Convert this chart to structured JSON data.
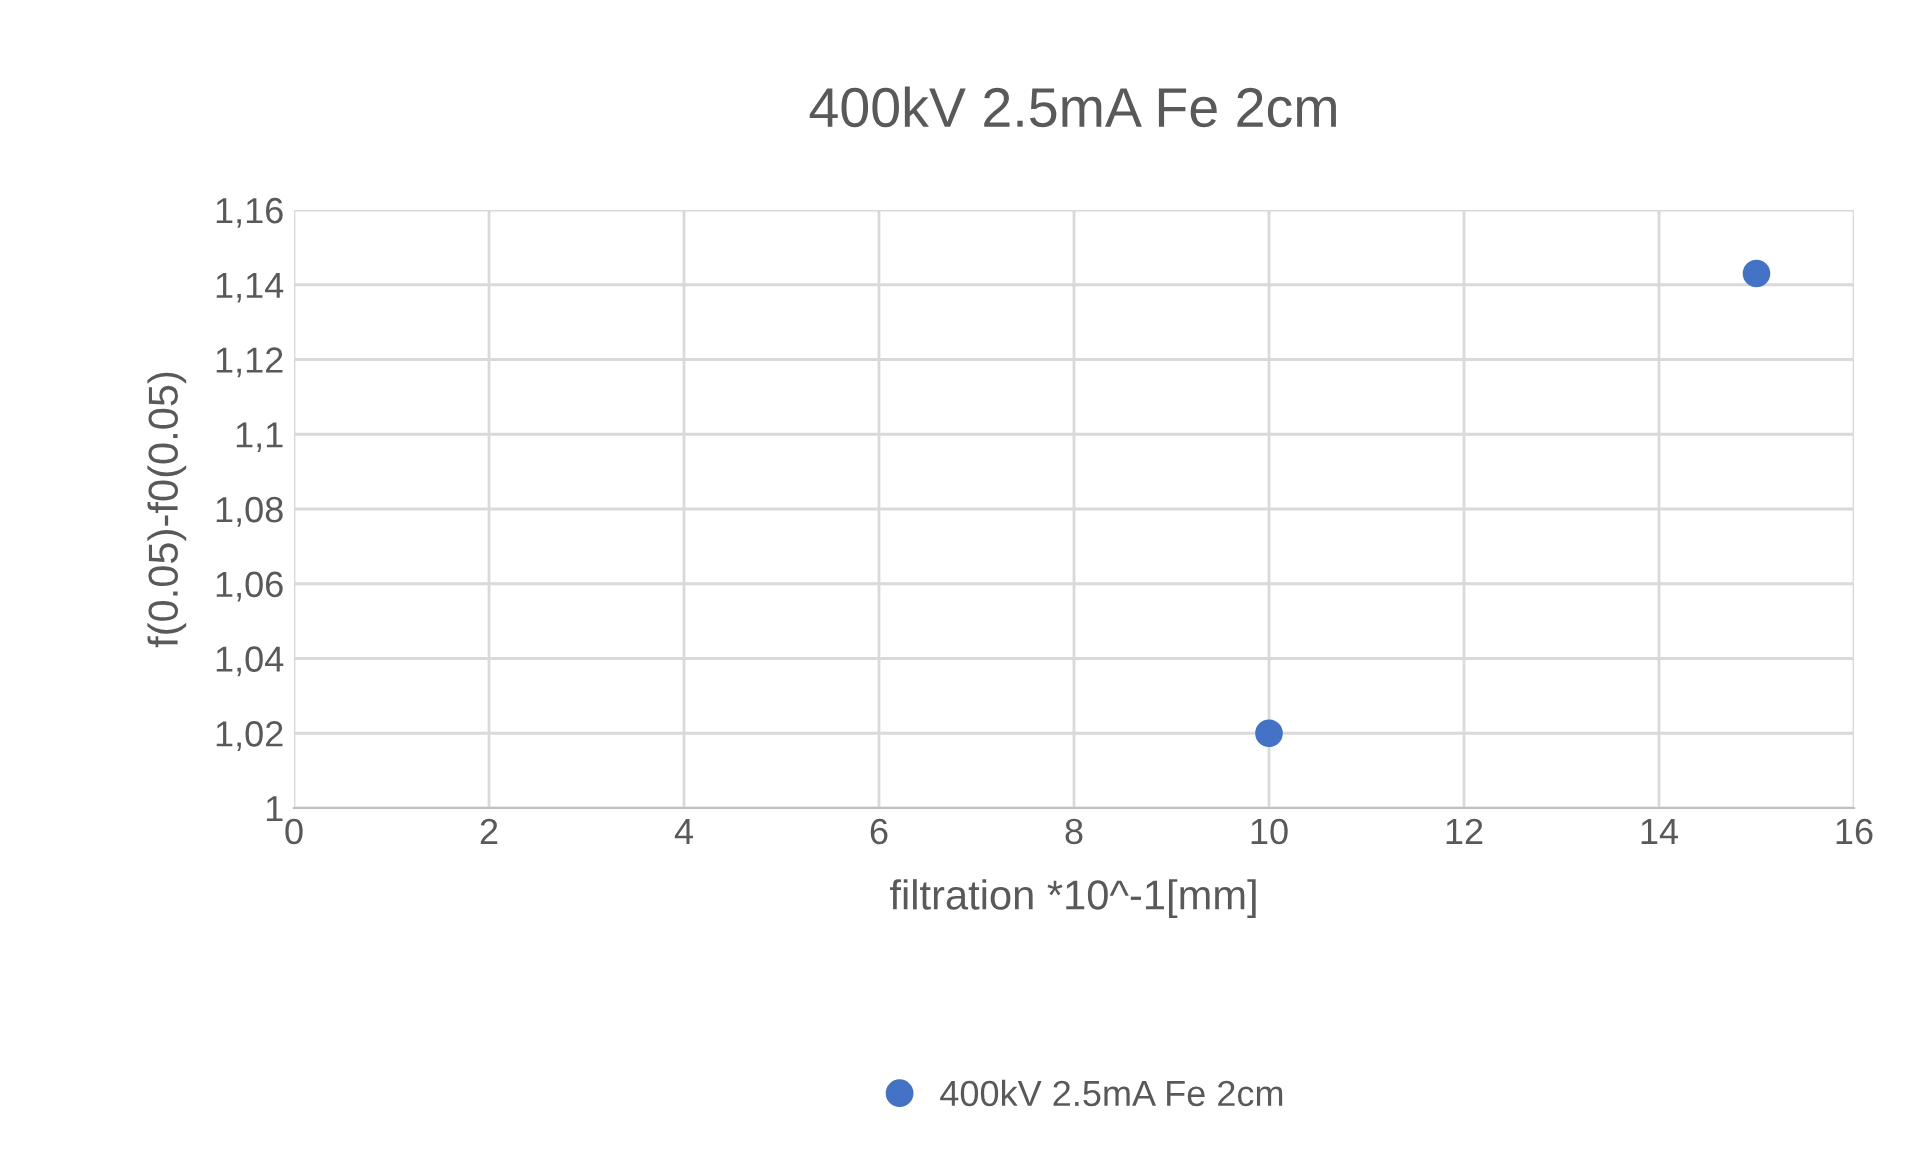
{
  "chart_data": {
    "type": "scatter",
    "title": "400kV 2.5mA Fe 2cm",
    "xlabel": "filtration *10^-1[mm]",
    "ylabel": "f(0.05)-f0(0.05)",
    "series": [
      {
        "name": "400kV 2.5mA Fe 2cm",
        "color": "#4472c4",
        "x": [
          10,
          15
        ],
        "values": [
          1.02,
          1.143
        ]
      }
    ],
    "xlim": [
      0,
      16
    ],
    "xticks": [
      0,
      2,
      4,
      6,
      8,
      10,
      12,
      14,
      16
    ],
    "ylim": [
      1,
      1.16
    ],
    "yticks": [
      1,
      {
        "value": 1.02,
        "label": "1,02"
      },
      {
        "value": 1.04,
        "label": "1,04"
      },
      {
        "value": 1.06,
        "label": "1,06"
      },
      {
        "value": 1.08,
        "label": "1,08"
      },
      {
        "value": 1.1,
        "label": "1,1"
      },
      {
        "value": 1.12,
        "label": "1,12"
      },
      {
        "value": 1.14,
        "label": "1,14"
      },
      {
        "value": 1.16,
        "label": "1,16"
      }
    ],
    "grid": true,
    "legend": "bottom",
    "marker": "circle"
  }
}
